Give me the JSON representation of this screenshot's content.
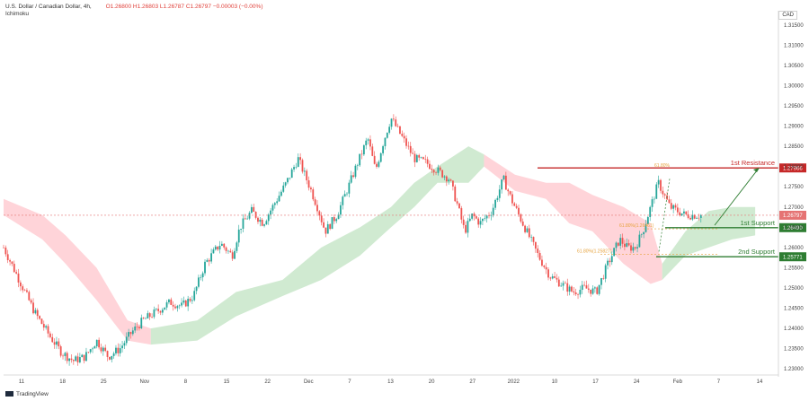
{
  "header": {
    "symbol": "U.S. Dollar / Canadian Dollar, 4h,",
    "ohlc": "O1.26800 H1.26803 L1.26787 C1.26797 −0.00003 (−0.00%)",
    "indicator": "Ichimoku"
  },
  "currency_button": "CAD",
  "branding": "TradingView",
  "colors": {
    "bull": "#26a69a",
    "bear": "#ef5350",
    "cloud_bull": "#c8e6c9",
    "cloud_bear": "#ffcdd2",
    "resistance": "#c62828",
    "support": "#2e7d32",
    "fib": "#e6a23c",
    "current": "#e57373"
  },
  "annotations": {
    "resistance_label": "1st Resistance",
    "support1_label": "1st Support",
    "support2_label": "2nd Support",
    "fib_top": "61.80%",
    "fib_mid": "61.80%(1.26461)",
    "fib_low": "61.80%(1.25827)"
  },
  "price_badges": {
    "resistance": "1.27966",
    "current": "1.26797",
    "support1": "1.26490",
    "support2": "1.25771"
  },
  "chart_data": {
    "type": "candlestick",
    "symbol": "U.S. Dollar / Canadian Dollar",
    "timeframe": "4h",
    "indicator": "Ichimoku",
    "y_ticks": [
      "1.31500",
      "1.31000",
      "1.30500",
      "1.30000",
      "1.29500",
      "1.29000",
      "1.28500",
      "1.28000",
      "1.27500",
      "1.27000",
      "1.26500",
      "1.26000",
      "1.25500",
      "1.25000",
      "1.24500",
      "1.24000",
      "1.23500",
      "1.23000"
    ],
    "x_ticks": [
      "11",
      "18",
      "25",
      "Nov",
      "8",
      "15",
      "22",
      "Dec",
      "7",
      "13",
      "20",
      "27",
      "2022",
      "10",
      "17",
      "24",
      "Feb",
      "7",
      "14"
    ],
    "ylim": [
      1.2285,
      1.3185
    ],
    "levels": {
      "resistance": 1.27966,
      "current": 1.26797,
      "support1": 1.2649,
      "support2": 1.25771
    },
    "close_path": [
      [
        0.0,
        1.26
      ],
      [
        0.02,
        1.252
      ],
      [
        0.04,
        1.244
      ],
      [
        0.06,
        1.238
      ],
      [
        0.075,
        1.234
      ],
      [
        0.09,
        1.232
      ],
      [
        0.105,
        1.233
      ],
      [
        0.12,
        1.237
      ],
      [
        0.135,
        1.233
      ],
      [
        0.15,
        1.235
      ],
      [
        0.165,
        1.239
      ],
      [
        0.18,
        1.242
      ],
      [
        0.2,
        1.2445
      ],
      [
        0.215,
        1.2465
      ],
      [
        0.23,
        1.2455
      ],
      [
        0.245,
        1.248
      ],
      [
        0.26,
        1.256
      ],
      [
        0.28,
        1.261
      ],
      [
        0.295,
        1.258
      ],
      [
        0.305,
        1.265
      ],
      [
        0.32,
        1.269
      ],
      [
        0.335,
        1.266
      ],
      [
        0.35,
        1.271
      ],
      [
        0.365,
        1.276
      ],
      [
        0.38,
        1.282
      ],
      [
        0.395,
        1.275
      ],
      [
        0.405,
        1.27
      ],
      [
        0.415,
        1.264
      ],
      [
        0.43,
        1.268
      ],
      [
        0.445,
        1.275
      ],
      [
        0.455,
        1.28
      ],
      [
        0.47,
        1.287
      ],
      [
        0.48,
        1.279
      ],
      [
        0.49,
        1.286
      ],
      [
        0.5,
        1.292
      ],
      [
        0.515,
        1.287
      ],
      [
        0.53,
        1.282
      ],
      [
        0.545,
        1.281
      ],
      [
        0.56,
        1.279
      ],
      [
        0.575,
        1.277
      ],
      [
        0.585,
        1.271
      ],
      [
        0.595,
        1.264
      ],
      [
        0.605,
        1.268
      ],
      [
        0.615,
        1.266
      ],
      [
        0.63,
        1.269
      ],
      [
        0.645,
        1.277
      ],
      [
        0.655,
        1.272
      ],
      [
        0.665,
        1.268
      ],
      [
        0.675,
        1.264
      ],
      [
        0.69,
        1.258
      ],
      [
        0.705,
        1.253
      ],
      [
        0.72,
        1.251
      ],
      [
        0.735,
        1.249
      ],
      [
        0.75,
        1.25
      ],
      [
        0.765,
        1.249
      ],
      [
        0.78,
        1.256
      ],
      [
        0.795,
        1.262
      ],
      [
        0.805,
        1.26
      ],
      [
        0.815,
        1.26
      ],
      [
        0.825,
        1.264
      ],
      [
        0.835,
        1.27
      ],
      [
        0.845,
        1.276
      ],
      [
        0.855,
        1.272
      ],
      [
        0.86,
        1.27
      ],
      [
        0.87,
        1.269
      ],
      [
        0.88,
        1.268
      ],
      [
        0.89,
        1.268
      ],
      [
        0.9,
        1.268
      ]
    ],
    "cloud_segments": [
      {
        "type": "bear",
        "upper": [
          [
            0.0,
            1.272
          ],
          [
            0.05,
            1.268
          ],
          [
            0.08,
            1.263
          ],
          [
            0.12,
            1.255
          ],
          [
            0.16,
            1.242
          ],
          [
            0.19,
            1.24
          ]
        ],
        "lower": [
          [
            0.0,
            1.268
          ],
          [
            0.05,
            1.262
          ],
          [
            0.08,
            1.256
          ],
          [
            0.12,
            1.247
          ],
          [
            0.16,
            1.237
          ],
          [
            0.19,
            1.236
          ]
        ]
      },
      {
        "type": "bull",
        "upper": [
          [
            0.19,
            1.24
          ],
          [
            0.25,
            1.242
          ],
          [
            0.3,
            1.249
          ],
          [
            0.36,
            1.252
          ],
          [
            0.41,
            1.26
          ],
          [
            0.46,
            1.265
          ],
          [
            0.5,
            1.27
          ],
          [
            0.53,
            1.276
          ],
          [
            0.56,
            1.28
          ],
          [
            0.6,
            1.285
          ],
          [
            0.62,
            1.283
          ]
        ],
        "lower": [
          [
            0.19,
            1.236
          ],
          [
            0.25,
            1.237
          ],
          [
            0.3,
            1.243
          ],
          [
            0.36,
            1.248
          ],
          [
            0.41,
            1.252
          ],
          [
            0.46,
            1.258
          ],
          [
            0.5,
            1.265
          ],
          [
            0.53,
            1.27
          ],
          [
            0.56,
            1.276
          ],
          [
            0.6,
            1.276
          ],
          [
            0.62,
            1.28
          ]
        ]
      },
      {
        "type": "bear",
        "upper": [
          [
            0.62,
            1.283
          ],
          [
            0.66,
            1.278
          ],
          [
            0.7,
            1.276
          ],
          [
            0.73,
            1.276
          ],
          [
            0.76,
            1.273
          ],
          [
            0.8,
            1.27
          ],
          [
            0.835,
            1.266
          ],
          [
            0.85,
            1.256
          ]
        ],
        "lower": [
          [
            0.62,
            1.28
          ],
          [
            0.66,
            1.274
          ],
          [
            0.7,
            1.272
          ],
          [
            0.73,
            1.266
          ],
          [
            0.76,
            1.264
          ],
          [
            0.8,
            1.256
          ],
          [
            0.835,
            1.251
          ],
          [
            0.85,
            1.252
          ]
        ]
      },
      {
        "type": "bull",
        "upper": [
          [
            0.85,
            1.256
          ],
          [
            0.88,
            1.264
          ],
          [
            0.91,
            1.269
          ],
          [
            0.94,
            1.27
          ],
          [
            0.97,
            1.27
          ]
        ],
        "lower": [
          [
            0.85,
            1.252
          ],
          [
            0.88,
            1.258
          ],
          [
            0.91,
            1.26
          ],
          [
            0.94,
            1.262
          ],
          [
            0.97,
            1.263
          ]
        ]
      }
    ]
  }
}
